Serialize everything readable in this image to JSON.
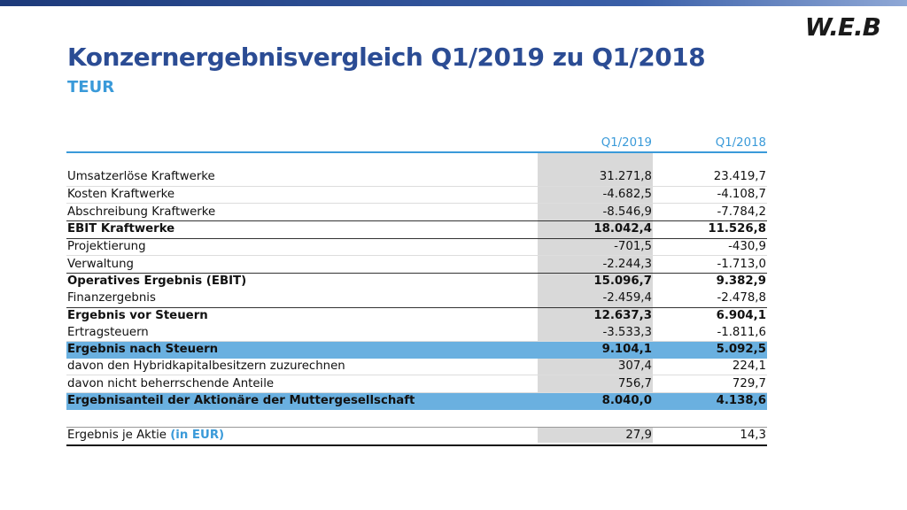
{
  "header": {
    "logo": "W.E.B",
    "title": "Konzernergebnisvergleich Q1/2019 zu Q1/2018",
    "subtitle": "TEUR"
  },
  "table": {
    "columns": [
      "Q1/2019",
      "Q1/2018"
    ],
    "rows": [
      [
        "Umsatzerlöse Kraftwerke",
        "31.271,8",
        "23.419,7"
      ],
      [
        "Kosten Kraftwerke",
        "-4.682,5",
        "-4.108,7"
      ],
      [
        "Abschreibung Kraftwerke",
        "-8.546,9",
        "-7.784,2"
      ],
      [
        "EBIT Kraftwerke",
        "18.042,4",
        "11.526,8"
      ],
      [
        "Projektierung",
        "-701,5",
        "-430,9"
      ],
      [
        "Verwaltung",
        "-2.244,3",
        "-1.713,0"
      ],
      [
        "Operatives Ergebnis (EBIT)",
        "15.096,7",
        "9.382,9"
      ],
      [
        "Finanzergebnis",
        "-2.459,4",
        "-2.478,8"
      ],
      [
        "Ergebnis vor Steuern",
        "12.637,3",
        "6.904,1"
      ],
      [
        "Ertragsteuern",
        "-3.533,3",
        "-1.811,6"
      ],
      [
        "Ergebnis nach Steuern",
        "9.104,1",
        "5.092,5"
      ],
      [
        "davon den Hybridkapitalbesitzern zuzurechnen",
        "307,4",
        "224,1"
      ],
      [
        "davon nicht beherrschende Anteile",
        "756,7",
        "729,7"
      ],
      [
        "Ergebnisanteil der Aktionäre der Muttergesellschaft",
        "8.040,0",
        "4.138,6"
      ]
    ],
    "footer": {
      "label": "Ergebnis je Aktie",
      "unit": "(in EUR)",
      "values": [
        "27,9",
        "14,3"
      ]
    }
  }
}
